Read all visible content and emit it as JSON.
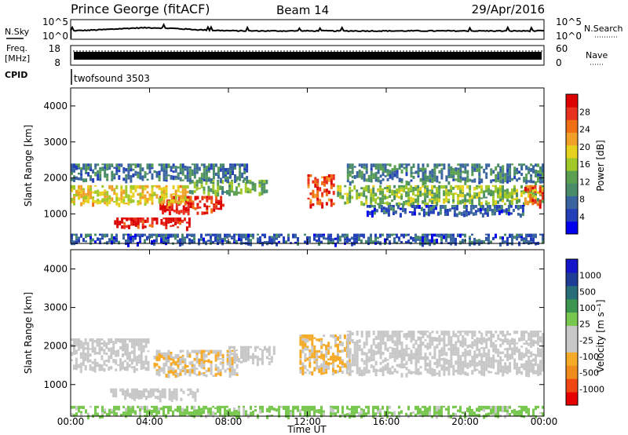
{
  "header": {
    "station": "Prince George (fitACF)",
    "beam": "Beam 14",
    "date": "29/Apr/2016"
  },
  "left_labels": {
    "nsky": "N.Sky",
    "freq_line1": "Freq.",
    "freq_line2": "[MHz]",
    "cpid": "CPID"
  },
  "right_labels": {
    "nsearch": "N.Search",
    "nave": "Nave"
  },
  "noise_axis": {
    "top": "10^5",
    "bottom": "10^0"
  },
  "freq_axis": {
    "top": "18",
    "bottom": "8"
  },
  "nave_axis": {
    "top": "60",
    "bottom": "0"
  },
  "cpid_label": "twofsound 3503",
  "colors": {
    "power_scale": [
      "#0000ee",
      "#2440b8",
      "#3a64a0",
      "#4a8c6a",
      "#5aa050",
      "#a0c828",
      "#e6d21e",
      "#f0a028",
      "#f06e14",
      "#e8321e",
      "#dc0000"
    ],
    "velocity_scale": [
      "#e60000",
      "#f04614",
      "#f08c1e",
      "#f5aa28",
      "#c8c8c8",
      "#c8c8c8",
      "#78c850",
      "#3c9650",
      "#286e78",
      "#1e3c96",
      "#1414c8"
    ],
    "velocity_gray": "#c6c6c6"
  },
  "chart_data": [
    {
      "type": "heatmap",
      "title": "Power",
      "ylabel": "Slant Range [km]",
      "xlabel": "",
      "x_range": [
        "00:00",
        "24:00"
      ],
      "ylim": [
        180,
        4500
      ],
      "y_ticks": [
        "1000",
        "2000",
        "3000",
        "4000"
      ],
      "colorbar_label": "Power [dB]",
      "colorbar_ticks": [
        "4",
        "8",
        "12",
        "16",
        "20",
        "24",
        "28"
      ],
      "colorbar_range": [
        0,
        30
      ],
      "features": [
        {
          "t_start": 2.2,
          "t_end": 6.2,
          "range_low": 650,
          "range_high": 900,
          "value": 28
        },
        {
          "t_start": 4.5,
          "t_end": 7.8,
          "range_low": 1050,
          "range_high": 1500,
          "value": 27
        },
        {
          "t_start": 0.0,
          "t_end": 6.0,
          "range_low": 1300,
          "range_high": 1800,
          "value": 18
        },
        {
          "t_start": 6.0,
          "t_end": 10.0,
          "range_low": 1600,
          "range_high": 1950,
          "value": 12
        },
        {
          "t_start": 0.0,
          "t_end": 9.0,
          "range_low": 1950,
          "range_high": 2400,
          "value": 8
        },
        {
          "t_start": 12.0,
          "t_end": 13.4,
          "range_low": 1250,
          "range_high": 2100,
          "value": 25
        },
        {
          "t_start": 13.5,
          "t_end": 24.0,
          "range_low": 1300,
          "range_high": 1800,
          "value": 14
        },
        {
          "t_start": 23.0,
          "t_end": 24.0,
          "range_low": 1250,
          "range_high": 1800,
          "value": 25
        },
        {
          "t_start": 14.0,
          "t_end": 24.0,
          "range_low": 1900,
          "range_high": 2400,
          "value": 9
        },
        {
          "t_start": 15.0,
          "t_end": 23.0,
          "range_low": 1000,
          "range_high": 1250,
          "value": 6
        },
        {
          "t_start": 0.0,
          "t_end": 24.0,
          "range_low": 200,
          "range_high": 450,
          "value": 6
        }
      ]
    },
    {
      "type": "heatmap",
      "title": "Velocity",
      "ylabel": "Slant Range [km]",
      "xlabel": "Time UT",
      "x_range": [
        "00:00",
        "24:00"
      ],
      "x_ticks": [
        "00:00",
        "04:00",
        "08:00",
        "12:00",
        "16:00",
        "20:00",
        "00:00"
      ],
      "ylim": [
        180,
        4500
      ],
      "y_ticks": [
        "1000",
        "2000",
        "3000",
        "4000"
      ],
      "colorbar_label": "Velocity [m s⁻¹]",
      "colorbar_ticks": [
        "-1000",
        "-500",
        "-100",
        "-25",
        "25",
        "100",
        "500",
        "1000"
      ],
      "colorbar_range": [
        -1000,
        1000
      ],
      "features": [
        {
          "t_start": 4.2,
          "t_end": 8.5,
          "range_low": 1250,
          "range_high": 1900,
          "value": -250
        },
        {
          "t_start": 11.6,
          "t_end": 14.2,
          "range_low": 1300,
          "range_high": 2300,
          "value": -300
        },
        {
          "t_start": 0.0,
          "t_end": 4.0,
          "range_low": 1400,
          "range_high": 2200,
          "value": 0
        },
        {
          "t_start": 8.0,
          "t_end": 10.5,
          "range_low": 1600,
          "range_high": 2000,
          "value": 0
        },
        {
          "t_start": 14.0,
          "t_end": 24.0,
          "range_low": 1300,
          "range_high": 2400,
          "value": 0
        },
        {
          "t_start": 2.0,
          "t_end": 6.5,
          "range_low": 650,
          "range_high": 900,
          "value": 0
        },
        {
          "t_start": 0.0,
          "t_end": 24.0,
          "range_low": 200,
          "range_high": 450,
          "value": 150
        }
      ]
    }
  ]
}
